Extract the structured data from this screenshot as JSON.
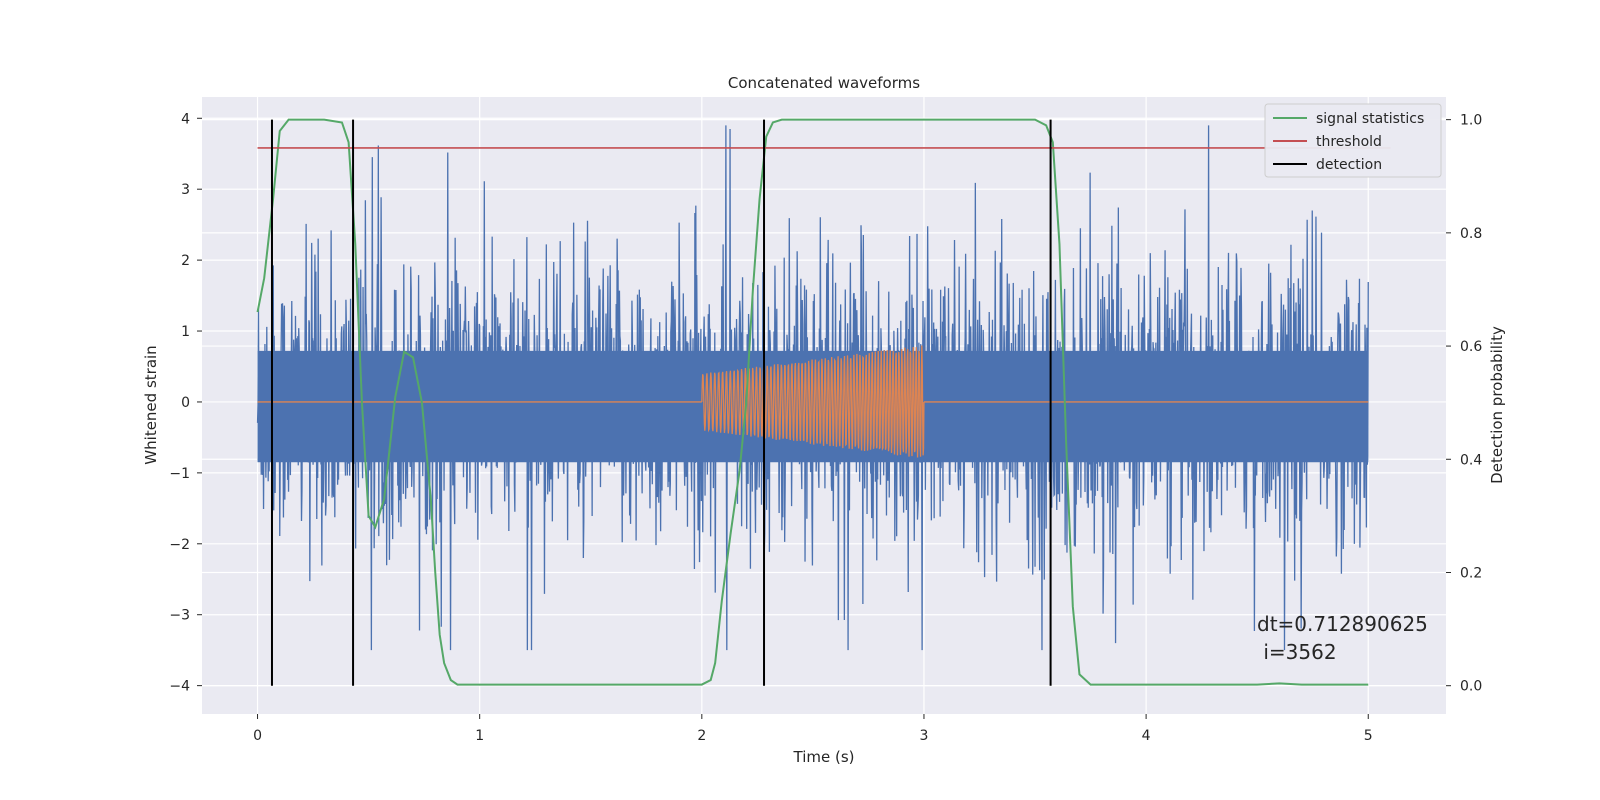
{
  "chart_data": {
    "type": "line",
    "title": "Concatenated waveforms",
    "xlabel": "Time (s)",
    "ylabel": "Whitened strain",
    "ylabel_right": "Detection probability",
    "xlim": [
      -0.25,
      5.35
    ],
    "ylim": [
      -4.4,
      4.3
    ],
    "ylim_right": [
      -0.05,
      1.04
    ],
    "x_ticks": [
      0,
      1,
      2,
      3,
      4,
      5
    ],
    "y_ticks": [
      -4,
      -3,
      -2,
      -1,
      0,
      1,
      2,
      3,
      4
    ],
    "y_ticks_right": [
      0.0,
      0.2,
      0.4,
      0.6,
      0.8,
      1.0
    ],
    "y_tick_labels_right": [
      "0.0",
      "0.2",
      "0.4",
      "0.6",
      "0.8",
      "1.0"
    ],
    "grid": true,
    "legend_position": "top-right",
    "colors": {
      "strain": "#4c72b0",
      "injected": "#dd8452",
      "signal_statistics": "#55a868",
      "threshold": "#c44e52",
      "detection": "#000000",
      "axes_bg": "#eaeaf2"
    },
    "series": [
      {
        "name": "",
        "axis": "left",
        "description_role": "whitened strain noise",
        "x_range": [
          0,
          5
        ],
        "envelope_range": [
          -3.5,
          3.9
        ],
        "core_range": [
          -0.85,
          0.72
        ]
      },
      {
        "name": "",
        "axis": "left",
        "description_role": "injected chirp",
        "x": [
          0,
          2,
          2,
          3,
          3,
          5
        ],
        "amplitude_start": 0.4,
        "amplitude_end": 0.8
      },
      {
        "name": "signal statistics",
        "axis": "right",
        "x": [
          0.0,
          0.03,
          0.07,
          0.1,
          0.14,
          0.2,
          0.3,
          0.38,
          0.41,
          0.44,
          0.47,
          0.5,
          0.53,
          0.57,
          0.62,
          0.66,
          0.7,
          0.74,
          0.78,
          0.8,
          0.82,
          0.84,
          0.87,
          0.9,
          1.0,
          1.5,
          2.0,
          2.04,
          2.06,
          2.09,
          2.13,
          2.17,
          2.2,
          2.23,
          2.26,
          2.29,
          2.32,
          2.36,
          2.5,
          3.0,
          3.5,
          3.55,
          3.58,
          3.61,
          3.64,
          3.67,
          3.7,
          3.75,
          4.0,
          4.5,
          4.6,
          4.7,
          5.0
        ],
        "y": [
          0.66,
          0.72,
          0.86,
          0.98,
          1.0,
          1.0,
          1.0,
          0.995,
          0.96,
          0.78,
          0.5,
          0.3,
          0.28,
          0.33,
          0.51,
          0.59,
          0.58,
          0.5,
          0.33,
          0.2,
          0.09,
          0.04,
          0.01,
          0.002,
          0.002,
          0.002,
          0.002,
          0.01,
          0.04,
          0.15,
          0.27,
          0.38,
          0.5,
          0.7,
          0.86,
          0.97,
          0.995,
          1.0,
          1.0,
          1.0,
          1.0,
          0.99,
          0.96,
          0.78,
          0.43,
          0.14,
          0.02,
          0.002,
          0.002,
          0.002,
          0.004,
          0.002,
          0.002
        ]
      },
      {
        "name": "threshold",
        "axis": "right",
        "x": [
          0,
          5.1
        ],
        "y": [
          0.95,
          0.95
        ]
      },
      {
        "name": "detection",
        "axis": "right",
        "vlines_x": [
          0.065,
          0.43,
          2.28,
          3.57
        ]
      }
    ],
    "legend": [
      {
        "label": "signal statistics",
        "color": "#55a868"
      },
      {
        "label": "threshold",
        "color": "#c44e52"
      },
      {
        "label": "detection",
        "color": "#000000"
      }
    ],
    "annotation": [
      "dt=0.712890625",
      " i=3562"
    ]
  }
}
